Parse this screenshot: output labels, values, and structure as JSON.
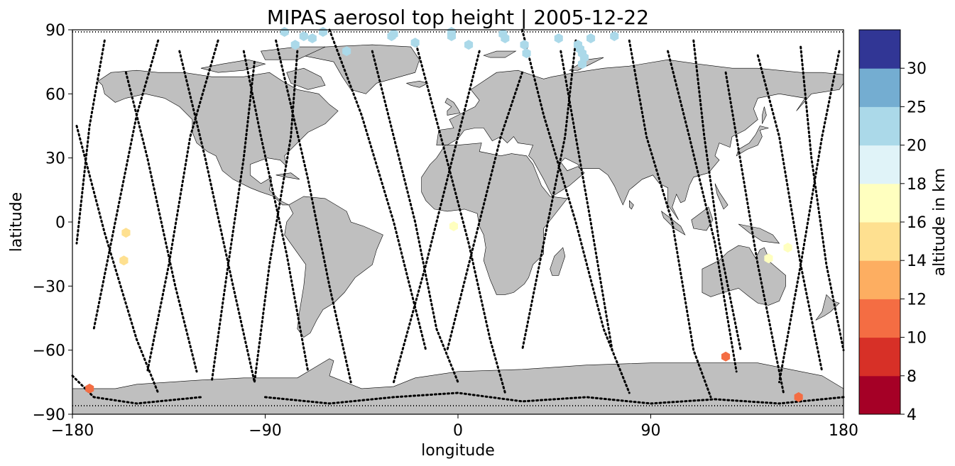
{
  "chart_data": {
    "type": "scatter",
    "title": "MIPAS aerosol top height | 2005-12-22",
    "xlabel": "longitude",
    "ylabel": "latitude",
    "xlim": [
      -180,
      180
    ],
    "ylim": [
      -90,
      90
    ],
    "x_ticks": [
      "−180",
      "−90",
      "0",
      "90",
      "180"
    ],
    "x_tick_values": [
      -180,
      -90,
      0,
      90,
      180
    ],
    "y_ticks": [
      "−90",
      "−60",
      "−30",
      "0",
      "30",
      "60",
      "90"
    ],
    "y_tick_values": [
      -90,
      -60,
      -30,
      0,
      30,
      60,
      90
    ],
    "grid": false,
    "land_color": "#bfbfbf",
    "coastline_color": "#000000",
    "track_color": "#000000",
    "colorbar": {
      "label": "altitude in km",
      "bounds": [
        4,
        8,
        10,
        12,
        14,
        16,
        18,
        20,
        25,
        30
      ],
      "tick_labels": [
        "4",
        "8",
        "10",
        "12",
        "14",
        "16",
        "18",
        "20",
        "25",
        "30"
      ],
      "colors": [
        "#a50026",
        "#d73027",
        "#f46d43",
        "#fdae61",
        "#fee090",
        "#ffffbf",
        "#e0f3f8",
        "#abd9e9",
        "#74add1",
        "#313695"
      ]
    },
    "aerosol_points": [
      {
        "lon": -81,
        "lat": 89,
        "alt": 22
      },
      {
        "lon": -68,
        "lat": 86,
        "alt": 22
      },
      {
        "lon": -63,
        "lat": 89,
        "alt": 22
      },
      {
        "lon": -72,
        "lat": 87,
        "alt": 22
      },
      {
        "lon": -76,
        "lat": 83,
        "alt": 22
      },
      {
        "lon": -52,
        "lat": 80,
        "alt": 22
      },
      {
        "lon": -30,
        "lat": 88,
        "alt": 22
      },
      {
        "lon": -31,
        "lat": 87,
        "alt": 22
      },
      {
        "lon": -20,
        "lat": 84,
        "alt": 22
      },
      {
        "lon": -3,
        "lat": 89,
        "alt": 22
      },
      {
        "lon": -3,
        "lat": 87,
        "alt": 22
      },
      {
        "lon": 5,
        "lat": 83,
        "alt": 22
      },
      {
        "lon": 21,
        "lat": 88,
        "alt": 22
      },
      {
        "lon": 22,
        "lat": 86,
        "alt": 22
      },
      {
        "lon": 31,
        "lat": 83,
        "alt": 22
      },
      {
        "lon": 32,
        "lat": 79,
        "alt": 22
      },
      {
        "lon": 47,
        "lat": 86,
        "alt": 22
      },
      {
        "lon": 56,
        "lat": 83,
        "alt": 22
      },
      {
        "lon": 57,
        "lat": 81,
        "alt": 22
      },
      {
        "lon": 58,
        "lat": 79,
        "alt": 22
      },
      {
        "lon": 59,
        "lat": 77,
        "alt": 22
      },
      {
        "lon": 58,
        "lat": 74,
        "alt": 22
      },
      {
        "lon": 62,
        "lat": 86,
        "alt": 22
      },
      {
        "lon": 73,
        "lat": 87,
        "alt": 22
      },
      {
        "lon": -155,
        "lat": -5,
        "alt": 15
      },
      {
        "lon": -156,
        "lat": -18,
        "alt": 15
      },
      {
        "lon": -2,
        "lat": -2,
        "alt": 17
      },
      {
        "lon": 145,
        "lat": -17,
        "alt": 17
      },
      {
        "lon": 154,
        "lat": -12,
        "alt": 17
      },
      {
        "lon": -172,
        "lat": -78,
        "alt": 11
      },
      {
        "lon": 125,
        "lat": -63,
        "alt": 11
      },
      {
        "lon": 159,
        "lat": -82,
        "alt": 11
      }
    ]
  }
}
